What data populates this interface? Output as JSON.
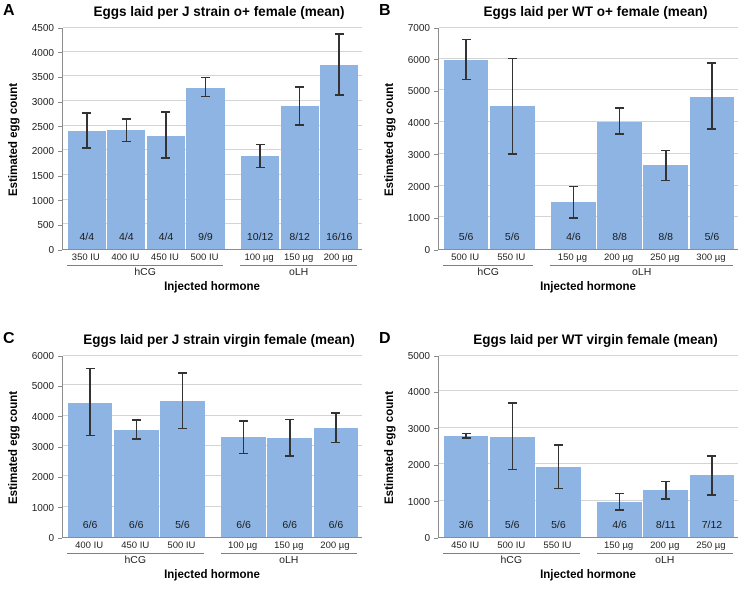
{
  "figure": {
    "colors": {
      "bar_fill": "#8db4e2",
      "error_bar": "#333333",
      "gridline": "#d4d4d4",
      "axis_line": "#8c8c8c",
      "tick_mark": "#8c8c8c",
      "text": "#000000"
    }
  },
  "chart_data": [
    {
      "letter": "A",
      "type": "bar",
      "title": "Eggs laid per J strain o+ female (mean)",
      "ylabel": "Estimated egg count",
      "xlabel": "Injected hormone",
      "ylim": [
        0,
        4500
      ],
      "ytick_step": 500,
      "grid": true,
      "groups": [
        {
          "label": "hCG",
          "categories": [
            "350 IU",
            "400 IU",
            "450 IU",
            "500 IU"
          ],
          "values": [
            2400,
            2410,
            2300,
            3270
          ],
          "err_lo": [
            2050,
            2180,
            1840,
            3090
          ],
          "err_hi": [
            2760,
            2640,
            2780,
            3480
          ],
          "bar_labels": [
            "4/4",
            "4/4",
            "4/4",
            "9/9"
          ]
        },
        {
          "label": "oLH",
          "categories": [
            "100 µg",
            "150 µg",
            "200 µg"
          ],
          "values": [
            1890,
            2890,
            3730
          ],
          "err_lo": [
            1650,
            2510,
            3120
          ],
          "err_hi": [
            2120,
            3280,
            4360
          ],
          "bar_labels": [
            "10/12",
            "8/12",
            "16/16"
          ]
        }
      ]
    },
    {
      "letter": "B",
      "type": "bar",
      "title": "Eggs laid per WT o+ female (mean)",
      "ylabel": "Estimated egg count",
      "xlabel": "Injected hormone",
      "ylim": [
        0,
        7000
      ],
      "ytick_step": 1000,
      "grid": true,
      "groups": [
        {
          "label": "hCG",
          "categories": [
            "500 IU",
            "550 IU"
          ],
          "values": [
            5950,
            4500
          ],
          "err_lo": [
            5350,
            3000
          ],
          "err_hi": [
            6600,
            6000
          ],
          "bar_labels": [
            "5/6",
            "5/6"
          ]
        },
        {
          "label": "oLH",
          "categories": [
            "150 µg",
            "200 µg",
            "250 µg",
            "300 µg"
          ],
          "values": [
            1490,
            4000,
            2640,
            4800
          ],
          "err_lo": [
            980,
            3630,
            2160,
            3790
          ],
          "err_hi": [
            1970,
            4440,
            3100,
            5870
          ],
          "bar_labels": [
            "4/6",
            "8/8",
            "8/8",
            "5/6"
          ]
        }
      ]
    },
    {
      "letter": "C",
      "type": "bar",
      "title": "Eggs laid per J strain virgin female (mean)",
      "ylabel": "Estimated egg count",
      "xlabel": "Injected hormone",
      "ylim": [
        0,
        6000
      ],
      "ytick_step": 1000,
      "grid": true,
      "groups": [
        {
          "label": "hCG",
          "categories": [
            "400 IU",
            "450 IU",
            "500 IU"
          ],
          "values": [
            4430,
            3540,
            4470
          ],
          "err_lo": [
            3340,
            3230,
            3570
          ],
          "err_hi": [
            5560,
            3850,
            5400
          ],
          "bar_labels": [
            "6/6",
            "6/6",
            "5/6"
          ]
        },
        {
          "label": "oLH",
          "categories": [
            "100 µg",
            "150 µg",
            "200 µg"
          ],
          "values": [
            3290,
            3270,
            3600
          ],
          "err_lo": [
            2760,
            2670,
            3120
          ],
          "err_hi": [
            3820,
            3870,
            4090
          ],
          "bar_labels": [
            "6/6",
            "6/6",
            "6/6"
          ]
        }
      ]
    },
    {
      "letter": "D",
      "type": "bar",
      "title": "Eggs laid per WT virgin female (mean)",
      "ylabel": "Estimated egg count",
      "xlabel": "Injected hormone",
      "ylim": [
        0,
        5000
      ],
      "ytick_step": 1000,
      "grid": true,
      "groups": [
        {
          "label": "hCG",
          "categories": [
            "450 IU",
            "500 IU",
            "550 IU"
          ],
          "values": [
            2780,
            2760,
            1920
          ],
          "err_lo": [
            2720,
            1850,
            1330
          ],
          "err_hi": [
            2850,
            3680,
            2530
          ],
          "bar_labels": [
            "3/6",
            "5/6",
            "5/6"
          ]
        },
        {
          "label": "oLH",
          "categories": [
            "150 µg",
            "200 µg",
            "250 µg"
          ],
          "values": [
            960,
            1280,
            1690
          ],
          "err_lo": [
            740,
            1050,
            1160
          ],
          "err_hi": [
            1190,
            1520,
            2230
          ],
          "bar_labels": [
            "4/6",
            "8/11",
            "7/12"
          ]
        }
      ]
    }
  ]
}
